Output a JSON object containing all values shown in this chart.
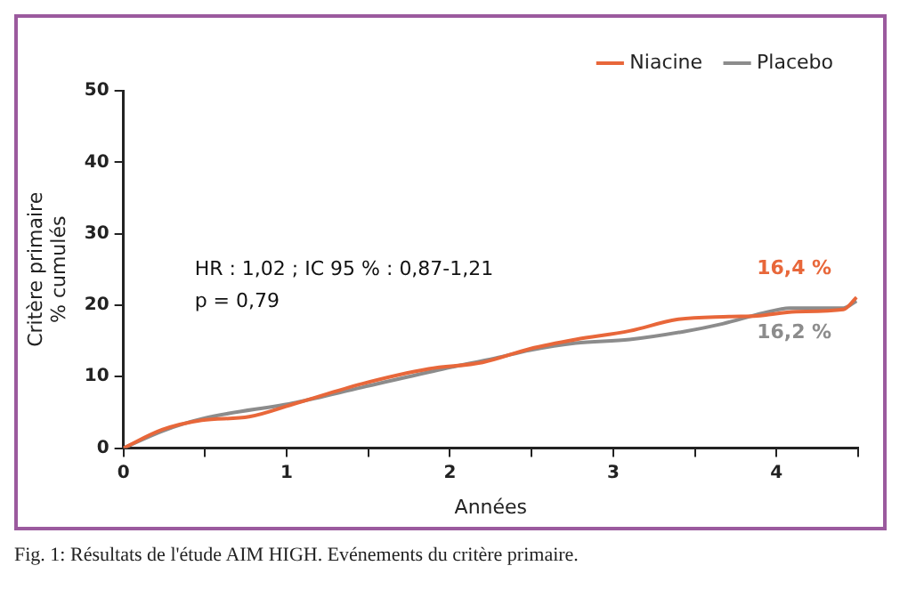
{
  "chart_data": {
    "type": "line",
    "xlabel": "Années",
    "ylabel": "Critère primaire\n% cumulés",
    "xlim": [
      0,
      4.5
    ],
    "xticks": [
      0,
      {
        "value": 0.5,
        "label": null
      },
      1,
      {
        "value": 1.5,
        "label": null
      },
      2,
      {
        "value": 2.5,
        "label": null
      },
      3,
      {
        "value": 3.5,
        "label": null
      },
      4,
      {
        "value": 4.5,
        "label": null
      }
    ],
    "ylim": [
      0,
      50
    ],
    "yticks": [
      0,
      10,
      20,
      30,
      40,
      50
    ],
    "grid": false,
    "legend": "top right",
    "marker": "none",
    "line_style": "solid",
    "series": [
      {
        "name": "Niacine",
        "color": "#e8673a",
        "x": [
          0,
          0.24,
          0.48,
          0.77,
          1.06,
          1.46,
          1.87,
          2.2,
          2.49,
          2.77,
          3.1,
          3.39,
          3.71,
          3.88,
          4.12,
          4.41,
          4.49
        ],
        "values": [
          0,
          2.6,
          3.9,
          4.4,
          6.3,
          9.0,
          11.1,
          12.0,
          13.9,
          15.2,
          16.4,
          18.0,
          18.4,
          18.5,
          19.1,
          19.4,
          21.1
        ]
      },
      {
        "name": "Placebo",
        "color": "#8c8c8c",
        "x": [
          0,
          0.24,
          0.48,
          1.06,
          1.46,
          1.96,
          2.28,
          2.49,
          2.77,
          3.1,
          3.43,
          3.67,
          3.92,
          4.08,
          4.41,
          4.49
        ],
        "values": [
          0,
          2.4,
          4.1,
          6.4,
          8.5,
          11.1,
          12.6,
          13.7,
          14.7,
          15.2,
          16.3,
          17.4,
          18.9,
          19.6,
          19.6,
          20.6
        ]
      }
    ],
    "annotations": [
      "HR : 1,02 ; IC 95 % : 0,87-1,21\np = 0,79",
      "16,4 %",
      "16,2 %",
      "Fig. 1: Résultats de l'étude AIM HIGH. Evénements du critère primaire."
    ]
  }
}
